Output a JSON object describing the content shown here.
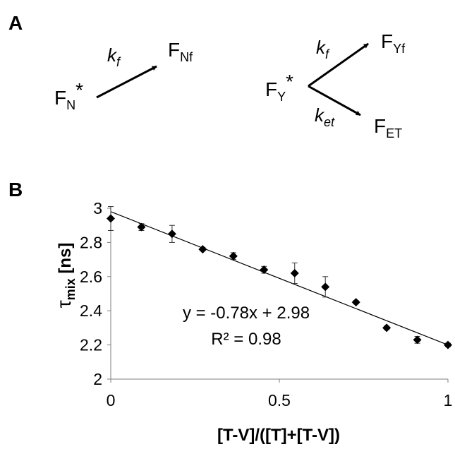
{
  "panel_a": {
    "label": "A",
    "left_scheme": {
      "start": {
        "base": "F",
        "sub": "N",
        "sup": "*"
      },
      "rate": {
        "base": "k",
        "sub": "f"
      },
      "product": {
        "base": "F",
        "sub": "Nf"
      }
    },
    "right_scheme": {
      "start": {
        "base": "F",
        "sub": "Y",
        "sup": "*"
      },
      "upper_rate": {
        "base": "k",
        "sub": "f"
      },
      "upper_product": {
        "base": "F",
        "sub": "Yf"
      },
      "lower_rate": {
        "base": "k",
        "sub": "et"
      },
      "lower_product": {
        "base": "F",
        "sub": "ET"
      }
    }
  },
  "panel_b": {
    "label": "B"
  },
  "chart_data": {
    "type": "scatter",
    "title": "",
    "xlabel": "[T-V]/([T]+[T-V])",
    "ylabel": {
      "symbol": "τ",
      "sub": "mix",
      "unit": " [ns]"
    },
    "xlim": [
      0,
      1
    ],
    "ylim": [
      2,
      3
    ],
    "x_ticks": [
      0,
      0.5,
      1
    ],
    "x_tick_labels": [
      "0",
      "0.5",
      "1"
    ],
    "y_ticks": [
      2,
      2.2,
      2.4,
      2.6,
      2.8,
      3
    ],
    "y_tick_labels": [
      "2",
      "2.2",
      "2.4",
      "2.6",
      "2.8",
      "3"
    ],
    "grid": false,
    "legend": "none",
    "marker": "diamond",
    "marker_color": "#000000",
    "series": [
      {
        "x": [
          0,
          0.0909,
          0.1818,
          0.2727,
          0.3636,
          0.4545,
          0.5455,
          0.6364,
          0.7273,
          0.8182,
          0.9091,
          1.0
        ],
        "y": [
          2.94,
          2.89,
          2.85,
          2.76,
          2.72,
          2.64,
          2.62,
          2.54,
          2.45,
          2.3,
          2.23,
          2.2
        ],
        "error": [
          0.07,
          0.02,
          0.05,
          0.01,
          0.02,
          0.02,
          0.06,
          0.06,
          0.01,
          0.01,
          0.02,
          0.01
        ]
      }
    ],
    "trendline": {
      "slope": -0.78,
      "intercept": 2.98
    },
    "annotations": [
      "y = -0.78x + 2.98",
      "R² = 0.98"
    ]
  }
}
